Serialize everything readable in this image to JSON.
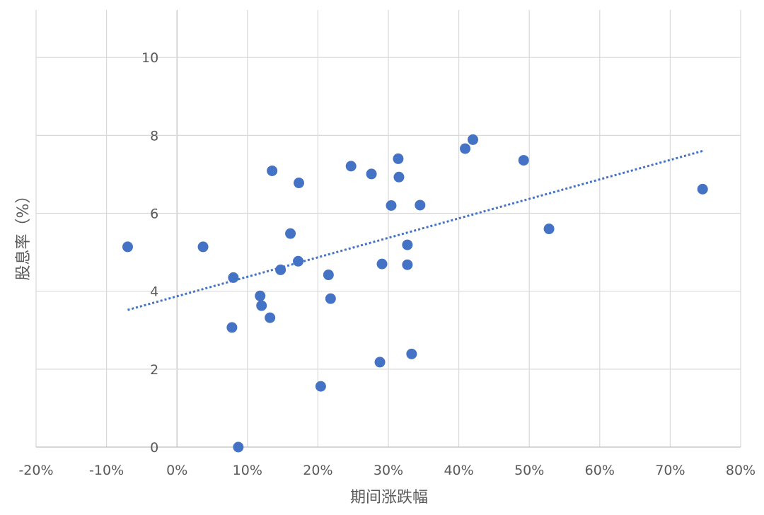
{
  "chart_data": {
    "type": "scatter",
    "xlabel": "期间涨跌幅",
    "ylabel": "股息率（%）",
    "xlim": [
      -0.2,
      0.8
    ],
    "ylim": [
      0,
      10
    ],
    "grid": true,
    "x_ticks": [
      -0.2,
      -0.1,
      0,
      0.1,
      0.2,
      0.3,
      0.4,
      0.5,
      0.6,
      0.7,
      0.8
    ],
    "x_tick_labels": [
      "-20%",
      "-10%",
      "0%",
      "10%",
      "20%",
      "30%",
      "40%",
      "50%",
      "60%",
      "70%",
      "80%"
    ],
    "y_ticks": [
      0,
      2,
      4,
      6,
      8,
      10
    ],
    "y_tick_labels": [
      "0",
      "2",
      "4",
      "6",
      "8",
      "10"
    ],
    "colors": {
      "point": "#4472c4",
      "trendline": "#4472c4",
      "grid": "#d9d9d9",
      "axis": "#bfbfbf"
    },
    "series": [
      {
        "points": [
          {
            "x": -0.07,
            "y": 5.14
          },
          {
            "x": 0.037,
            "y": 5.14
          },
          {
            "x": 0.08,
            "y": 4.35
          },
          {
            "x": 0.078,
            "y": 3.07
          },
          {
            "x": 0.087,
            "y": 0.0
          },
          {
            "x": 0.118,
            "y": 3.88
          },
          {
            "x": 0.12,
            "y": 3.63
          },
          {
            "x": 0.132,
            "y": 3.32
          },
          {
            "x": 0.135,
            "y": 7.09
          },
          {
            "x": 0.147,
            "y": 4.55
          },
          {
            "x": 0.161,
            "y": 5.48
          },
          {
            "x": 0.172,
            "y": 4.77
          },
          {
            "x": 0.173,
            "y": 6.78
          },
          {
            "x": 0.204,
            "y": 1.56
          },
          {
            "x": 0.215,
            "y": 4.42
          },
          {
            "x": 0.218,
            "y": 3.81
          },
          {
            "x": 0.247,
            "y": 7.21
          },
          {
            "x": 0.276,
            "y": 7.01
          },
          {
            "x": 0.288,
            "y": 2.18
          },
          {
            "x": 0.291,
            "y": 4.7
          },
          {
            "x": 0.304,
            "y": 6.2
          },
          {
            "x": 0.314,
            "y": 7.4
          },
          {
            "x": 0.315,
            "y": 6.93
          },
          {
            "x": 0.327,
            "y": 5.19
          },
          {
            "x": 0.327,
            "y": 4.68
          },
          {
            "x": 0.333,
            "y": 2.39
          },
          {
            "x": 0.345,
            "y": 6.21
          },
          {
            "x": 0.409,
            "y": 7.66
          },
          {
            "x": 0.42,
            "y": 7.89
          },
          {
            "x": 0.492,
            "y": 7.36
          },
          {
            "x": 0.528,
            "y": 5.6
          },
          {
            "x": 0.746,
            "y": 6.62
          }
        ]
      }
    ],
    "trendline": {
      "type": "linear",
      "style": "dotted",
      "x_start": -0.07,
      "y_start": 3.52,
      "x_end": 0.746,
      "y_end": 7.6
    }
  }
}
